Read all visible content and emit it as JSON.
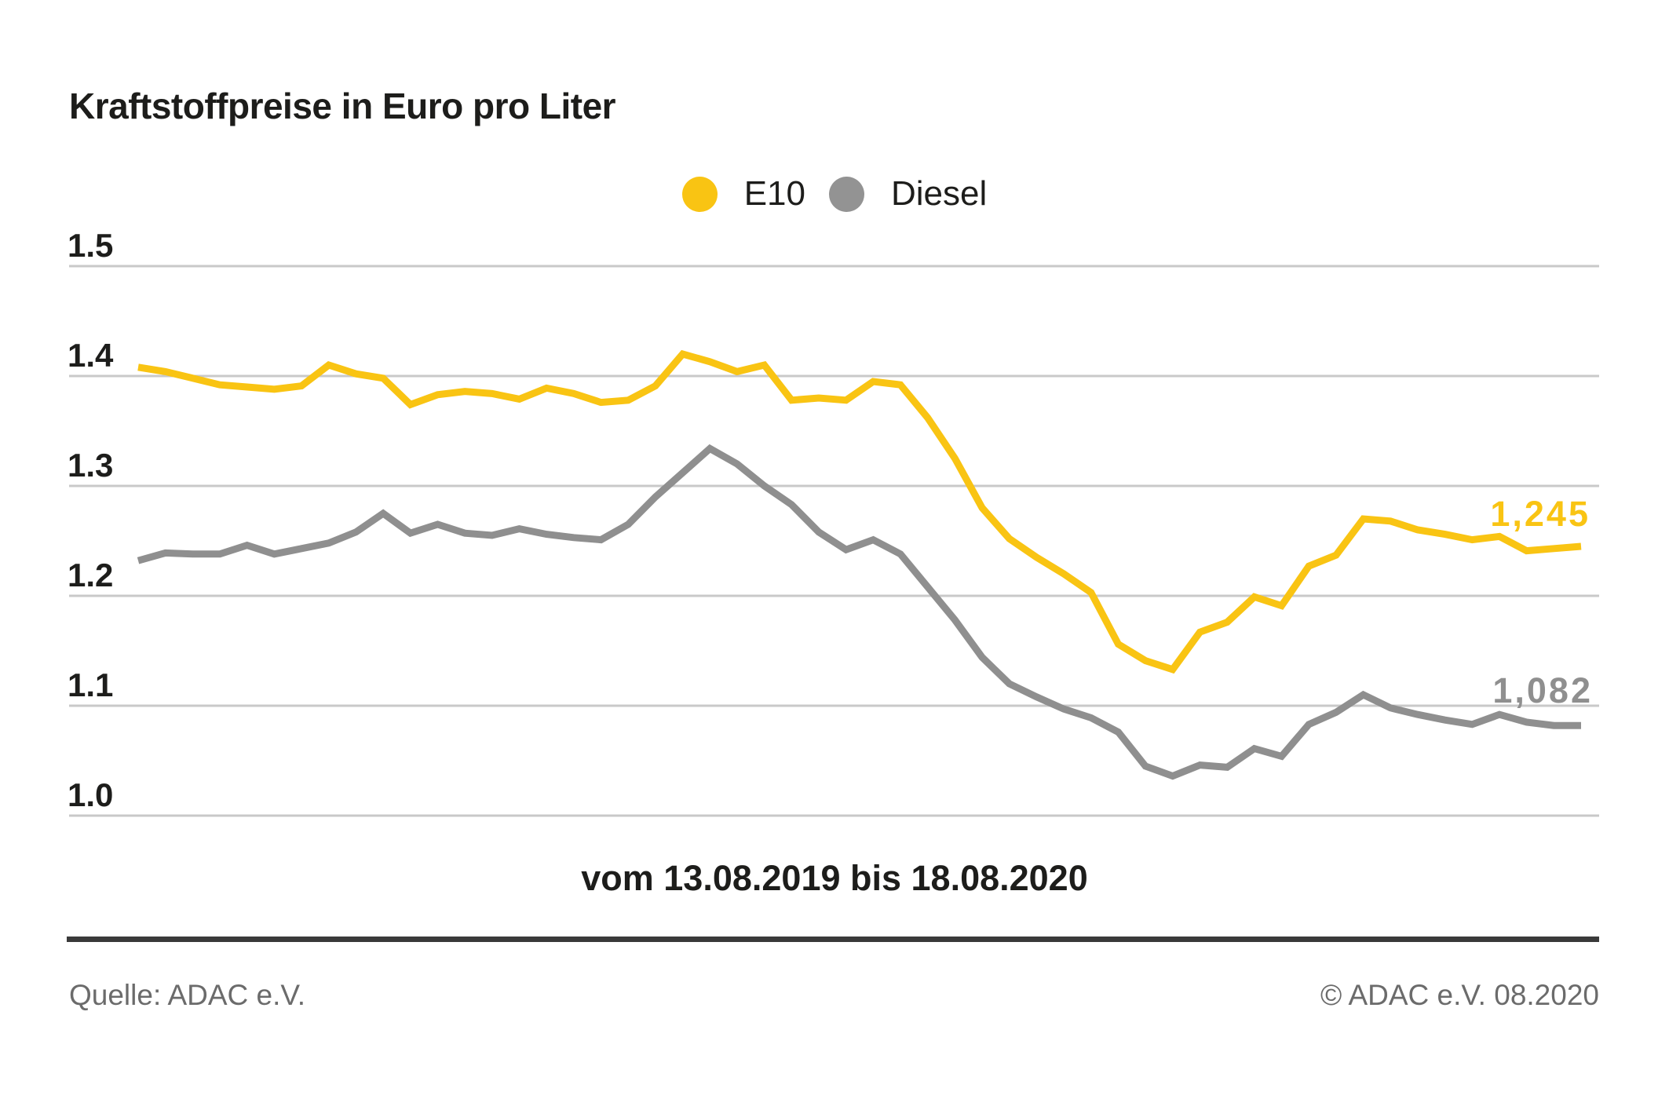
{
  "title": "Kraftstoffpreise in Euro pro Liter",
  "legend": {
    "items": [
      {
        "label": "E10",
        "color": "#F9C413"
      },
      {
        "label": "Diesel",
        "color": "#939393"
      }
    ]
  },
  "chart_data": {
    "type": "line",
    "title": "Kraftstoffpreise in Euro pro Liter",
    "xlabel": "vom 13.08.2019 bis 18.08.2020",
    "ylabel": "Euro pro Liter",
    "x_range": [
      "13.08.2019",
      "18.08.2020"
    ],
    "x_interval": "weekly",
    "ylim": [
      0.97,
      1.53
    ],
    "grid": true,
    "gridline_color": "#c9c9c9",
    "legend_position": "top-center",
    "y_ticks": [
      1.5,
      1.4,
      1.3,
      1.2,
      1.1,
      1.0
    ],
    "y_tick_labels": [
      "1.5",
      "1.4",
      "1.3",
      "1.2",
      "1.1",
      "1.0"
    ],
    "series": [
      {
        "name": "E10",
        "color": "#F9C413",
        "end_label": "1,245",
        "end_value": 1.245,
        "values": [
          1.408,
          1.404,
          1.398,
          1.392,
          1.39,
          1.388,
          1.391,
          1.41,
          1.402,
          1.398,
          1.374,
          1.383,
          1.386,
          1.384,
          1.379,
          1.389,
          1.384,
          1.376,
          1.378,
          1.391,
          1.42,
          1.413,
          1.404,
          1.41,
          1.378,
          1.38,
          1.378,
          1.395,
          1.392,
          1.362,
          1.325,
          1.28,
          1.252,
          1.235,
          1.22,
          1.203,
          1.156,
          1.141,
          1.133,
          1.167,
          1.176,
          1.199,
          1.191,
          1.227,
          1.237,
          1.27,
          1.268,
          1.26,
          1.256,
          1.251,
          1.254,
          1.241,
          1.243,
          1.245
        ]
      },
      {
        "name": "Diesel",
        "color": "#8F8F8F",
        "end_label": "1,082",
        "end_value": 1.082,
        "values": [
          1.232,
          1.239,
          1.238,
          1.238,
          1.246,
          1.238,
          1.243,
          1.248,
          1.258,
          1.275,
          1.257,
          1.265,
          1.257,
          1.255,
          1.261,
          1.256,
          1.253,
          1.251,
          1.265,
          1.29,
          1.312,
          1.334,
          1.32,
          1.3,
          1.283,
          1.258,
          1.242,
          1.251,
          1.238,
          1.208,
          1.178,
          1.144,
          1.12,
          1.108,
          1.097,
          1.089,
          1.076,
          1.045,
          1.036,
          1.046,
          1.044,
          1.061,
          1.054,
          1.083,
          1.094,
          1.11,
          1.098,
          1.092,
          1.087,
          1.083,
          1.092,
          1.085,
          1.082,
          1.082
        ]
      }
    ]
  },
  "footer": {
    "source": "Quelle: ADAC e.V.",
    "copyright": "© ADAC e.V. 08.2020"
  }
}
